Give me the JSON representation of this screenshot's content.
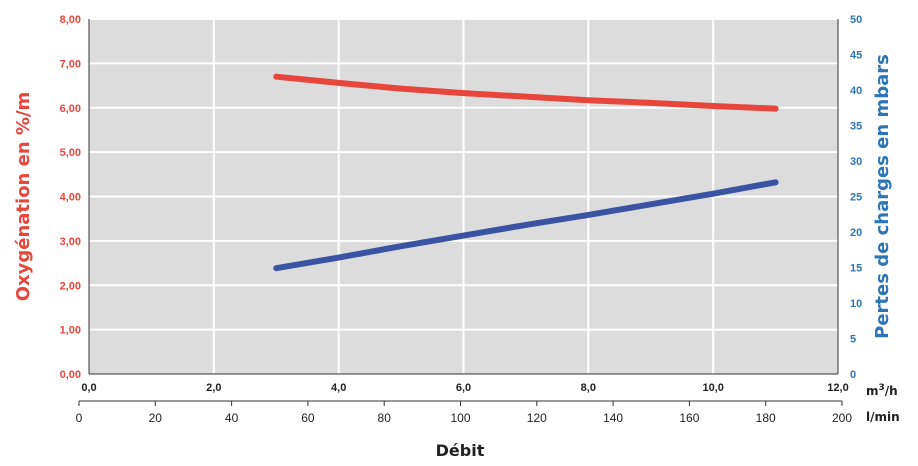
{
  "chart_data": {
    "type": "line",
    "title": "",
    "xlabel": "Débit",
    "x_primary": {
      "unit": "m³/h",
      "range": [
        0,
        12
      ],
      "ticks": [
        "0,0",
        "2,0",
        "4,0",
        "6,0",
        "8,0",
        "10,0",
        "12,0"
      ]
    },
    "x_secondary": {
      "unit": "l/min",
      "range": [
        0,
        200
      ],
      "ticks": [
        "0",
        "20",
        "40",
        "60",
        "80",
        "100",
        "120",
        "140",
        "160",
        "180",
        "200"
      ]
    },
    "y_left": {
      "label": "Oxygénation en %/m",
      "range": [
        0,
        8
      ],
      "ticks": [
        "0,00",
        "1,00",
        "2,00",
        "3,00",
        "4,00",
        "5,00",
        "6,00",
        "7,00",
        "8,00"
      ],
      "color": "#e8453c"
    },
    "y_right": {
      "label": "Pertes de charges en mbars",
      "range": [
        0,
        50
      ],
      "ticks": [
        "0",
        "5",
        "10",
        "15",
        "20",
        "25",
        "30",
        "35",
        "40",
        "45",
        "50"
      ],
      "color": "#2e75b6"
    },
    "grid": true,
    "series": [
      {
        "axis": "left",
        "color": "#e8453c",
        "x": [
          3.0,
          4.0,
          5.0,
          6.0,
          7.0,
          8.0,
          9.0,
          10.0,
          11.0
        ],
        "values": [
          6.7,
          6.56,
          6.43,
          6.33,
          6.25,
          6.17,
          6.11,
          6.04,
          5.98
        ]
      },
      {
        "axis": "right",
        "color": "#3a53a4",
        "x": [
          3.0,
          4.0,
          5.0,
          6.0,
          7.0,
          8.0,
          9.0,
          10.0,
          11.0
        ],
        "values": [
          14.9,
          16.4,
          18.0,
          19.5,
          21.0,
          22.4,
          23.9,
          25.4,
          27.0
        ]
      }
    ]
  }
}
